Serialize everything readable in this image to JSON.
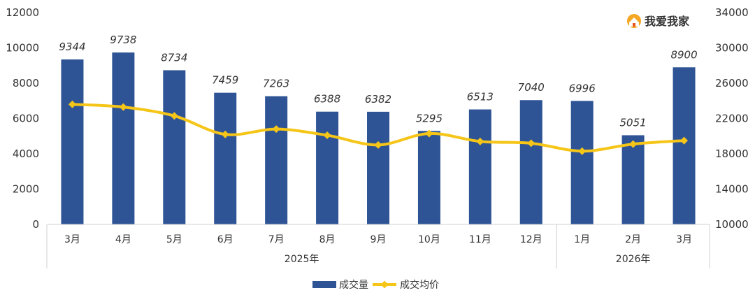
{
  "brand": {
    "name": "我爱我家",
    "icon": "house-logo-icon"
  },
  "chart_data": {
    "type": "bar",
    "categories": [
      "3月",
      "4月",
      "5月",
      "6月",
      "7月",
      "8月",
      "9月",
      "10月",
      "11月",
      "12月",
      "1月",
      "2月",
      "3月"
    ],
    "groups": [
      {
        "label": "2025年",
        "count": 10
      },
      {
        "label": "2026年",
        "count": 3
      }
    ],
    "series": [
      {
        "name": "成交量",
        "type": "bar",
        "axis": "left",
        "color": "#2E5496",
        "values": [
          9344,
          9738,
          8734,
          7459,
          7263,
          6388,
          6382,
          5295,
          6513,
          7040,
          6996,
          5051,
          8900
        ]
      },
      {
        "name": "成交均价",
        "type": "line",
        "axis": "right",
        "color": "#F5C518",
        "values": [
          23600,
          23300,
          22300,
          20200,
          20800,
          20100,
          19000,
          20300,
          19400,
          19200,
          18300,
          19100,
          19500
        ]
      }
    ],
    "y_left": {
      "min": 0,
      "max": 12000,
      "ticks": [
        0,
        2000,
        4000,
        6000,
        8000,
        10000,
        12000
      ]
    },
    "y_right": {
      "min": 10000,
      "max": 34000,
      "ticks": [
        10000,
        14000,
        18000,
        22000,
        26000,
        30000,
        34000
      ]
    },
    "legend": {
      "placement": "bottom",
      "items": [
        "成交量",
        "成交均价"
      ]
    },
    "grid": false
  }
}
